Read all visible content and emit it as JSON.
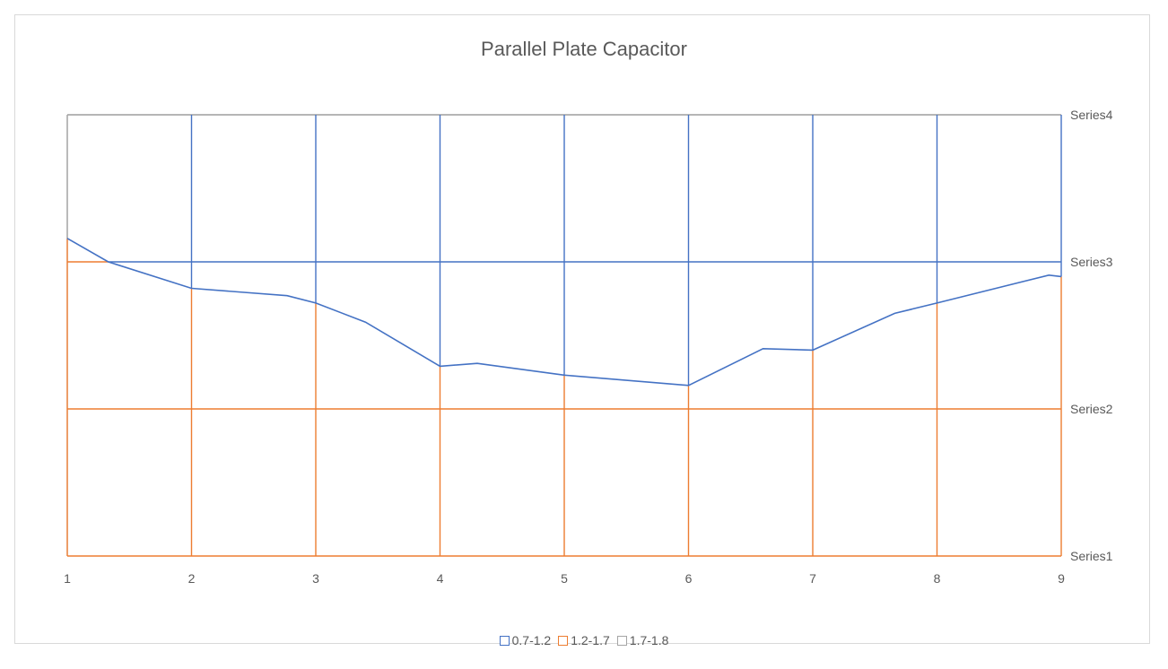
{
  "chart_data": {
    "type": "surface-contour",
    "title": "Parallel Plate Capacitor",
    "x_categories": [
      "1",
      "2",
      "3",
      "4",
      "5",
      "6",
      "7",
      "8",
      "9"
    ],
    "y_categories": [
      "Series1",
      "Series2",
      "Series3",
      "Series4"
    ],
    "bands": [
      {
        "name": "0.7-1.2",
        "color": "#4472c4"
      },
      {
        "name": "1.2-1.7",
        "color": "#ed7d31"
      },
      {
        "name": "1.7-1.8",
        "color": "#a5a5a5"
      }
    ],
    "contour_1_2": {
      "x": [
        1,
        1.33,
        2,
        2.77,
        3,
        3.4,
        4,
        4.3,
        5,
        6,
        6.6,
        7,
        7.66,
        8,
        8.9,
        9
      ],
      "y": [
        3.16,
        3.0,
        2.82,
        2.77,
        2.72,
        2.59,
        2.29,
        2.31,
        2.23,
        2.16,
        2.41,
        2.4,
        2.65,
        2.72,
        2.91,
        2.9
      ]
    },
    "grid_lines": true,
    "legend_position": "bottom"
  }
}
